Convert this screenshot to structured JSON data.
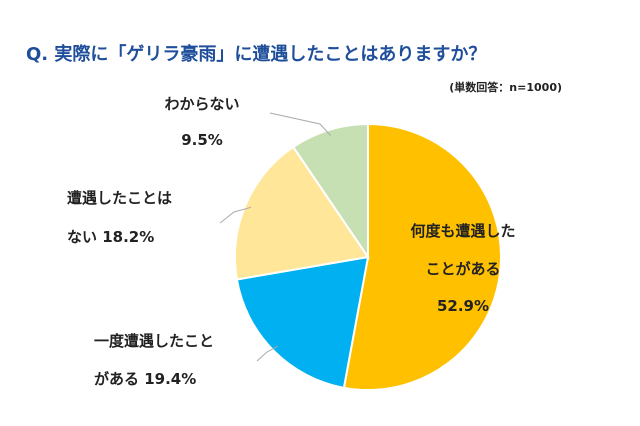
{
  "title": "Q. 実際に「ゲリラ豪雨」に遭遇したことはありますか？",
  "note": "(単数回答：n=1000)",
  "chart_data": {
    "type": "pie",
    "title": "Q. 実際に「ゲリラ豪雨」に遭遇したことはありますか？",
    "subtitle": "(単数回答：n=1000)",
    "start_angle_deg": 0,
    "direction": "clockwise",
    "slices": [
      {
        "label": "何度も遭遇したことがある",
        "value": 52.9,
        "color": "#ffc000",
        "text_lines": [
          "何度も遭遇した",
          "ことがある",
          "52.9%"
        ]
      },
      {
        "label": "一度遭遇したことがある",
        "value": 19.4,
        "color": "#00b0f0",
        "text_lines": [
          "一度遭遇したこと",
          "がある 19.4%"
        ]
      },
      {
        "label": "遭遇したことはない",
        "value": 18.2,
        "color": "#ffe699",
        "text_lines": [
          "遭遇したことは",
          "ない 18.2%"
        ]
      },
      {
        "label": "わからない",
        "value": 9.5,
        "color": "#c6e0b4",
        "text_lines": [
          "わからない",
          "9.5%"
        ]
      }
    ]
  }
}
